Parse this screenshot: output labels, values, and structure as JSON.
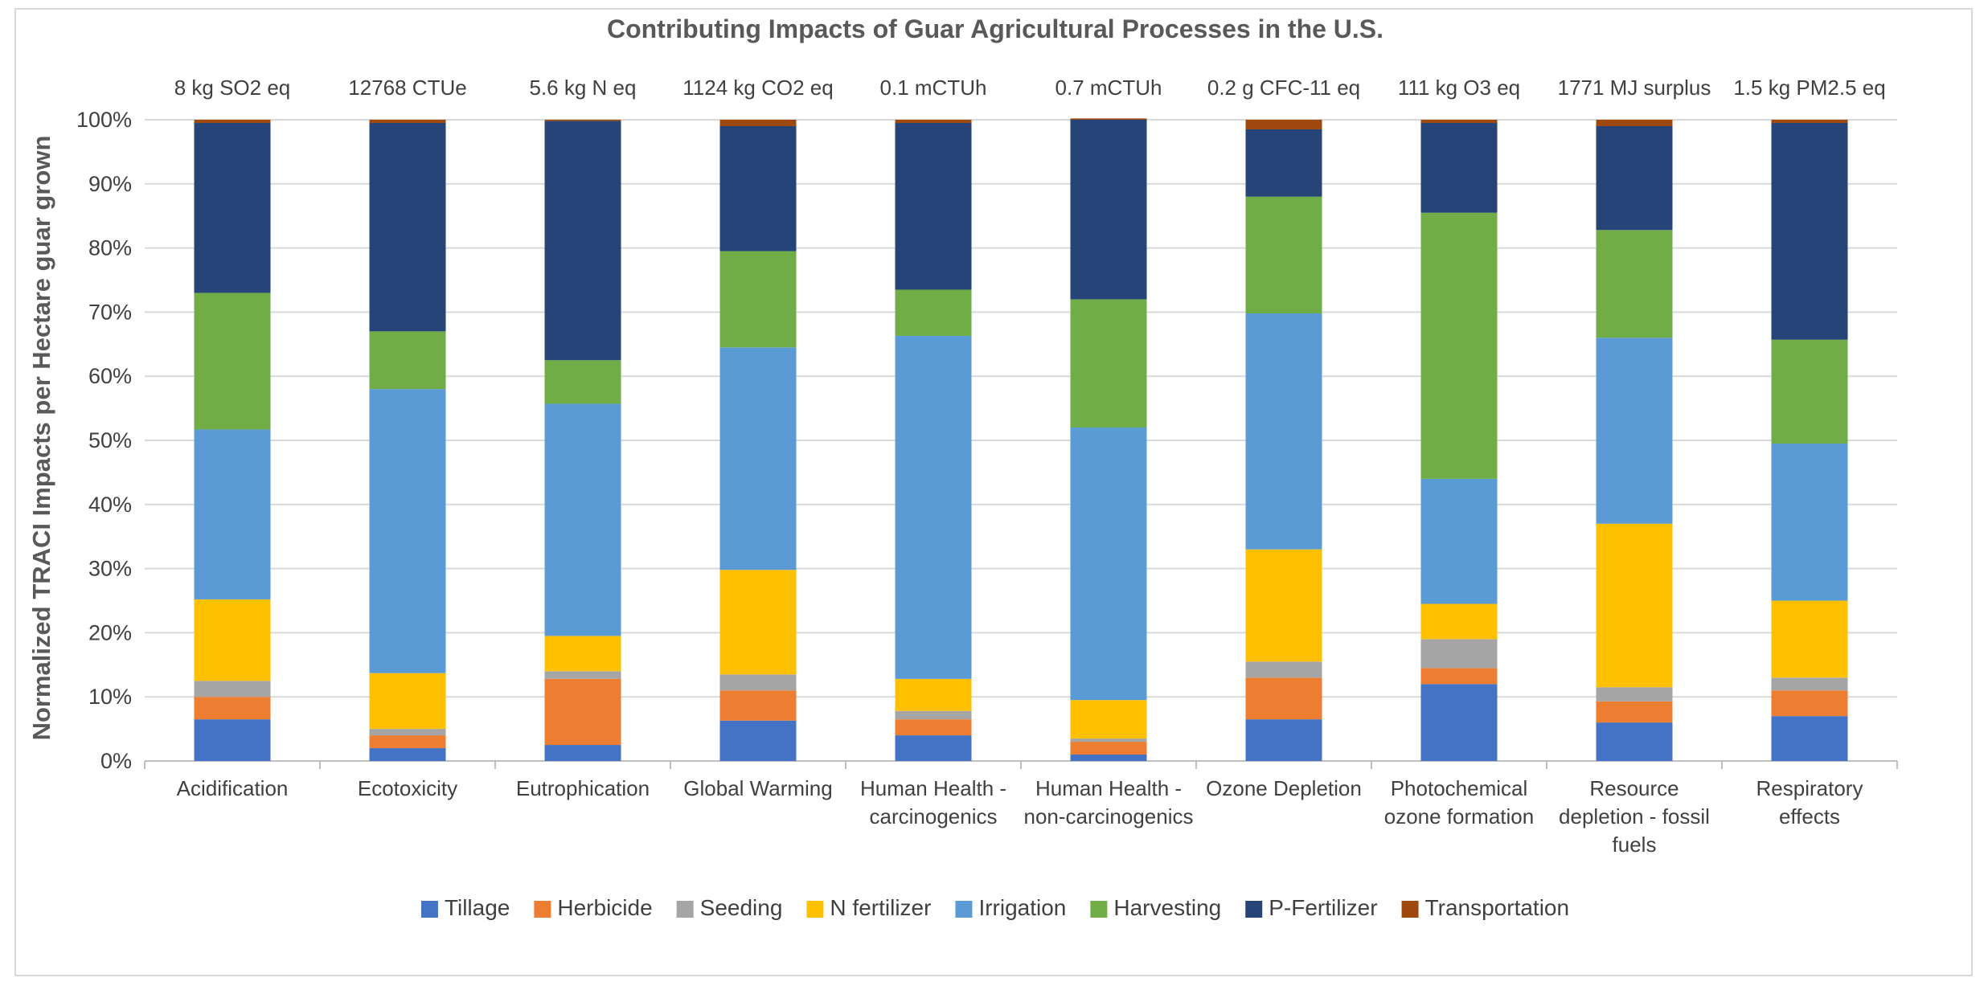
{
  "chart_data": {
    "type": "bar",
    "stacked": true,
    "normalized": true,
    "title": "Contributing Impacts of Guar Agricultural Processes in the U.S.",
    "ylabel": "Normalized TRACI Impacts per Hectare guar grown",
    "xlabel": "",
    "ylim": [
      0,
      100
    ],
    "yticks": [
      "0%",
      "10%",
      "20%",
      "30%",
      "40%",
      "50%",
      "60%",
      "70%",
      "80%",
      "90%",
      "100%"
    ],
    "grid": true,
    "legend_position": "bottom",
    "categories": [
      [
        "Acidification"
      ],
      [
        "Ecotoxicity"
      ],
      [
        "Eutrophication"
      ],
      [
        "Global Warming"
      ],
      [
        "Human Health -",
        "carcinogenics"
      ],
      [
        "Human Health -",
        "non-carcinogenics"
      ],
      [
        "Ozone Depletion"
      ],
      [
        "Photochemical",
        "ozone formation"
      ],
      [
        "Resource",
        "depletion - fossil",
        "fuels"
      ],
      [
        "Respiratory",
        "effects"
      ]
    ],
    "totals": [
      "8 kg SO2 eq",
      "12768 CTUe",
      "5.6 kg N eq",
      "1124 kg CO2 eq",
      "0.1 mCTUh",
      "0.7 mCTUh",
      "0.2 g CFC-11 eq",
      "111 kg O3 eq",
      "1771 MJ surplus",
      "1.5 kg PM2.5 eq"
    ],
    "series": [
      {
        "name": "Tillage",
        "color": "#4472C4",
        "values": [
          6.5,
          2.0,
          2.5,
          6.3,
          4.0,
          1.0,
          6.5,
          12.0,
          6.0,
          7.0
        ]
      },
      {
        "name": "Herbicide",
        "color": "#ED7D31",
        "values": [
          3.5,
          2.0,
          10.3,
          4.7,
          2.5,
          2.0,
          6.5,
          2.5,
          3.3,
          4.0
        ]
      },
      {
        "name": "Seeding",
        "color": "#A5A5A5",
        "values": [
          2.5,
          1.0,
          1.2,
          2.5,
          1.3,
          0.5,
          2.5,
          4.5,
          2.2,
          2.0
        ]
      },
      {
        "name": "N fertilizer",
        "color": "#FFC000",
        "values": [
          12.7,
          8.7,
          5.5,
          16.3,
          5.0,
          6.0,
          17.5,
          5.5,
          25.5,
          12.0
        ]
      },
      {
        "name": "Irrigation",
        "color": "#5B9BD5",
        "values": [
          26.5,
          44.3,
          36.2,
          34.7,
          53.5,
          42.5,
          36.8,
          19.5,
          29.0,
          24.5
        ]
      },
      {
        "name": "Harvesting",
        "color": "#70AD47",
        "values": [
          21.3,
          9.0,
          6.8,
          15.0,
          7.2,
          20.0,
          18.2,
          41.5,
          16.8,
          16.2
        ]
      },
      {
        "name": "P-Fertilizer",
        "color": "#264478",
        "values": [
          26.5,
          32.5,
          37.3,
          19.5,
          26.0,
          28.0,
          10.5,
          14.0,
          16.2,
          33.8
        ]
      },
      {
        "name": "Transportation",
        "color": "#9E480E",
        "values": [
          0.5,
          0.5,
          0.2,
          1.0,
          0.5,
          0.2,
          1.5,
          0.5,
          1.0,
          0.5
        ]
      }
    ]
  }
}
